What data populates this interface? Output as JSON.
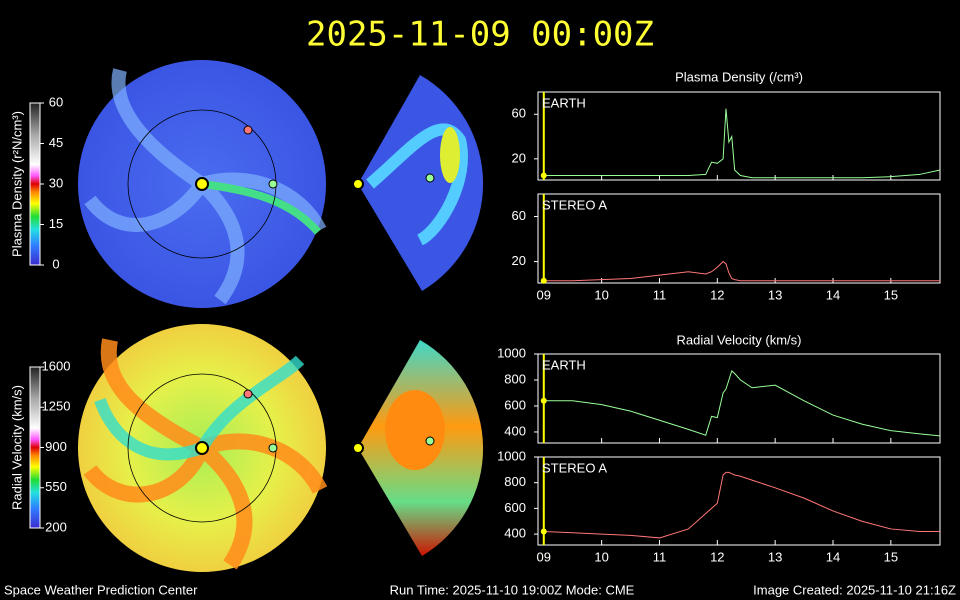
{
  "header": {
    "title": "2025-11-09 00:00Z"
  },
  "footer": {
    "left": "Space Weather Prediction Center",
    "center": "Run Time: 2025-11-10 19:00Z  Mode: CME",
    "right": "Image Created: 2025-11-10 21:16Z"
  },
  "colorbars": [
    {
      "label": "Plasma Density (r²N/cm³)",
      "clim": [
        0,
        60
      ],
      "ticks": [
        0,
        15,
        30,
        45,
        60
      ]
    },
    {
      "label": "Radial Velocity (km/s)",
      "clim": [
        200,
        1600
      ],
      "ticks": [
        200,
        550,
        900,
        1250,
        1600
      ]
    }
  ],
  "chart_data": [
    {
      "type": "line",
      "title": "Plasma Density (/cm³)",
      "now": 9,
      "x": [
        9,
        9.5,
        10,
        10.5,
        11,
        11.5,
        11.8,
        11.9,
        12.0,
        12.1,
        12.15,
        12.2,
        12.25,
        12.3,
        12.4,
        12.6,
        13,
        13.5,
        14,
        14.5,
        15,
        15.5,
        15.85
      ],
      "series": [
        {
          "name": "EARTH",
          "color": "#99ff99",
          "values": [
            5,
            5,
            5,
            5,
            5,
            5,
            6,
            17,
            16,
            20,
            65,
            35,
            40,
            10,
            5,
            3,
            3,
            3,
            3,
            3,
            4,
            6,
            10
          ]
        }
      ],
      "xlim": [
        8.9,
        15.85
      ],
      "xticks": [
        9,
        10,
        11,
        12,
        13,
        14,
        15
      ],
      "xtick_labels": false,
      "ylim": [
        1,
        80
      ],
      "yticks": [
        20,
        60
      ]
    },
    {
      "type": "line",
      "now": 9,
      "x": [
        9,
        9.5,
        10,
        10.5,
        11,
        11.5,
        11.8,
        11.9,
        12.0,
        12.1,
        12.15,
        12.2,
        12.25,
        12.3,
        12.4,
        12.6,
        13,
        13.5,
        14,
        14.5,
        15,
        15.5,
        15.85
      ],
      "series": [
        {
          "name": "STEREO A",
          "color": "#ff7777",
          "values": [
            3,
            3,
            4,
            5,
            8,
            11,
            9,
            11,
            15,
            20,
            18,
            10,
            5,
            4,
            3,
            3,
            3,
            3,
            3,
            3,
            3,
            3,
            3
          ]
        }
      ],
      "xlim": [
        8.9,
        15.85
      ],
      "xticks": [
        {
          "value": 9,
          "label": "09"
        },
        10,
        11,
        12,
        13,
        14,
        15
      ],
      "xtick_labels": true,
      "ylim": [
        1,
        80
      ],
      "yticks": [
        20,
        60
      ]
    },
    {
      "type": "line",
      "title": "Radial Velocity (km/s)",
      "now": 9,
      "x": [
        9,
        9.5,
        10,
        10.5,
        11,
        11.5,
        11.8,
        11.9,
        12.0,
        12.1,
        12.15,
        12.2,
        12.25,
        12.3,
        12.4,
        12.6,
        13,
        13.5,
        14,
        14.5,
        15,
        15.5,
        15.85
      ],
      "series": [
        {
          "name": "EARTH",
          "color": "#99ff99",
          "values": [
            640,
            640,
            610,
            560,
            490,
            420,
            375,
            520,
            510,
            700,
            730,
            800,
            870,
            850,
            800,
            740,
            760,
            640,
            530,
            460,
            410,
            385,
            370
          ]
        }
      ],
      "xlim": [
        8.9,
        15.85
      ],
      "xticks": [
        9,
        10,
        11,
        12,
        13,
        14,
        15
      ],
      "xtick_labels": false,
      "ylim": [
        315,
        1000
      ],
      "yticks": [
        400,
        600,
        800,
        1000
      ]
    },
    {
      "type": "line",
      "now": 9,
      "x": [
        9,
        9.5,
        10,
        10.5,
        11,
        11.5,
        11.8,
        11.9,
        12.0,
        12.1,
        12.15,
        12.2,
        12.25,
        12.3,
        12.4,
        12.6,
        13,
        13.5,
        14,
        14.5,
        15,
        15.5,
        15.85
      ],
      "series": [
        {
          "name": "STEREO A",
          "color": "#ff7777",
          "values": [
            420,
            410,
            400,
            390,
            370,
            440,
            560,
            600,
            640,
            860,
            880,
            880,
            870,
            860,
            850,
            820,
            760,
            680,
            580,
            500,
            440,
            420,
            420
          ]
        }
      ],
      "xlim": [
        8.9,
        15.85
      ],
      "xticks": [
        {
          "value": 9,
          "label": "09"
        },
        10,
        11,
        12,
        13,
        14,
        15
      ],
      "xtick_labels": true,
      "ylim": [
        315,
        1000
      ],
      "yticks": [
        400,
        600,
        800,
        1000
      ]
    }
  ]
}
